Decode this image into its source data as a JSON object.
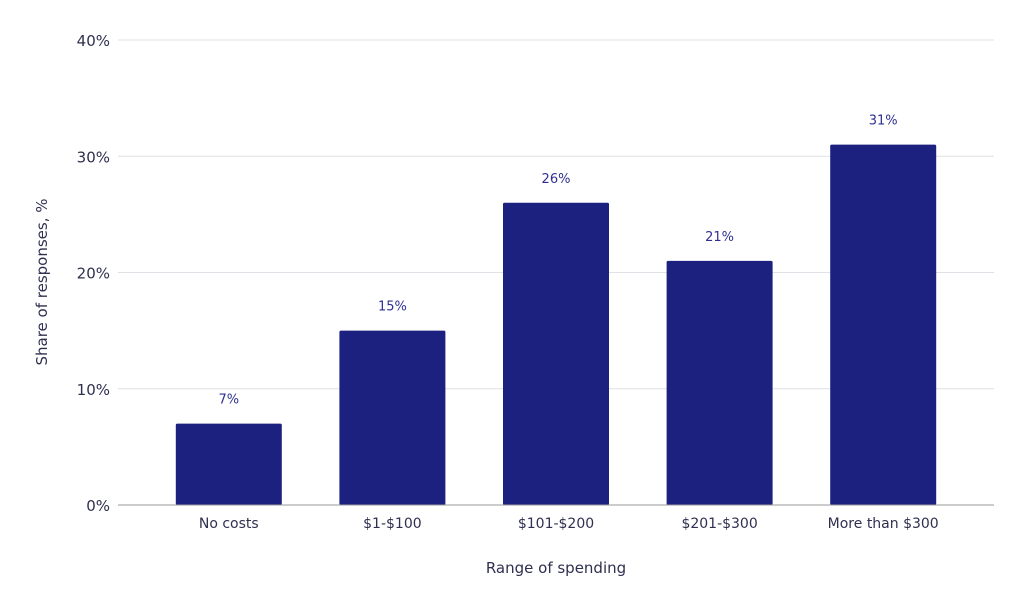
{
  "chart_data": {
    "type": "bar",
    "categories": [
      "No costs",
      "$1-$100",
      "$101-$200",
      "$201-$300",
      "More than $300"
    ],
    "values": [
      7,
      15,
      26,
      21,
      31
    ],
    "data_labels": [
      "7%",
      "15%",
      "26%",
      "21%",
      "31%"
    ],
    "title": "",
    "xlabel": "Range of spending",
    "ylabel": "Share of responses, %",
    "ylim": [
      0,
      40
    ],
    "yticks": [
      0,
      10,
      20,
      30,
      40
    ],
    "ytick_labels": [
      "0%",
      "10%",
      "20%",
      "30%",
      "40%"
    ],
    "grid": true,
    "legend": "none",
    "colors": {
      "bar": "#1c2180",
      "data_label": "#2e3192",
      "grid": "#e0e0e6",
      "axis": "#999999"
    }
  }
}
